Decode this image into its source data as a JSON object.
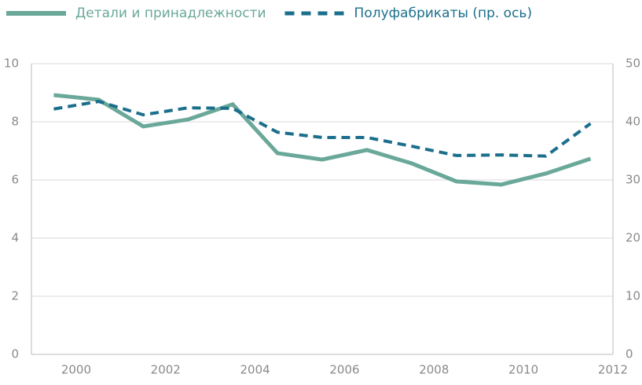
{
  "chart_data": {
    "type": "line",
    "x": [
      1999.5,
      2000.5,
      2001.5,
      2002.5,
      2003.5,
      2004.5,
      2005.5,
      2006.5,
      2007.5,
      2008.5,
      2009.5,
      2010.5,
      2011.5
    ],
    "series": [
      {
        "name": "Детали и принадлежности",
        "color": "#6aa89a",
        "dash": false,
        "values": [
          8.92,
          8.76,
          7.84,
          8.08,
          8.6,
          6.92,
          6.7,
          7.03,
          6.57,
          5.95,
          5.84,
          6.22,
          6.73
        ]
      },
      {
        "name": "Полуфабрикаты (пр. ось)",
        "color": "#1b6f8c",
        "dash": true,
        "axis": "y2",
        "values": [
          42.2,
          43.5,
          41.2,
          42.4,
          42.3,
          38.2,
          37.3,
          37.3,
          35.8,
          34.2,
          34.3,
          34.1,
          39.7
        ]
      }
    ],
    "xlim": [
      1999,
      2012
    ],
    "xticks": [
      2000,
      2002,
      2004,
      2006,
      2008,
      2010,
      2012
    ],
    "ylim": [
      0,
      10
    ],
    "yticks": [
      0,
      2,
      4,
      6,
      8,
      10
    ],
    "y2lim": [
      0,
      50
    ],
    "y2ticks": [
      0,
      10,
      20,
      30,
      40,
      50
    ],
    "grid": true
  }
}
